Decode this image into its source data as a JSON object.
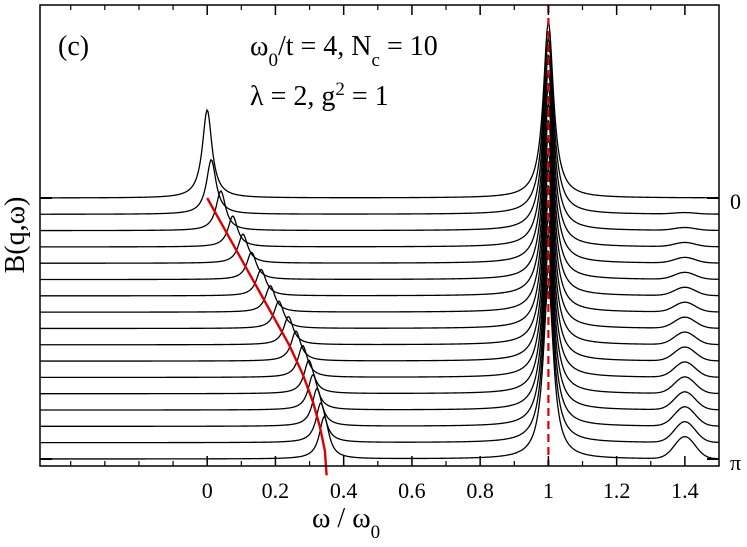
{
  "chart_data": {
    "type": "line",
    "panel_label": "(c)",
    "annotation_line1": {
      "main1": "ω",
      "sub1": "0",
      "main2": "/t = 4, N",
      "sub2": "c",
      "main3": " = 10"
    },
    "annotation_line2": {
      "main1": "λ = 2, g",
      "sup1": "2",
      "main2": " = 1"
    },
    "xlabel": {
      "main": "ω / ω",
      "sub": "0"
    },
    "ylabel": "B(q,ω)",
    "xlim": [
      -0.49,
      1.5
    ],
    "xticks": [
      0,
      0.2,
      0.4,
      0.6,
      0.8,
      1,
      1.2,
      1.4
    ],
    "xtick_labels": [
      "0",
      "0.2",
      "0.4",
      "0.6",
      "0.8",
      "1",
      "1.2",
      "1.4"
    ],
    "right_labels": {
      "top": "0",
      "bottom": "π"
    },
    "n_curves": 17,
    "series_description": "stacked spectra from q = 0 (top) to q = π (bottom)",
    "low_peak_positions": [
      0.0,
      0.012,
      0.04,
      0.075,
      0.105,
      0.13,
      0.158,
      0.185,
      0.21,
      0.238,
      0.26,
      0.28,
      0.298,
      0.31,
      0.322,
      0.333,
      0.343
    ],
    "low_peak_heights": [
      1.0,
      0.62,
      0.45,
      0.35,
      0.33,
      0.31,
      0.3,
      0.3,
      0.31,
      0.32,
      0.34,
      0.36,
      0.38,
      0.4,
      0.43,
      0.45,
      0.48
    ],
    "high_peak_position": 1.0,
    "high_peak_height": 2.0,
    "satellite_position": 1.4,
    "dispersion_curve": {
      "color": "#dd0000",
      "x": [
        0.0,
        0.04,
        0.08,
        0.12,
        0.16,
        0.2,
        0.24,
        0.28,
        0.31,
        0.33,
        0.345,
        0.35
      ],
      "curve_index": [
        0,
        1.5,
        3,
        4.5,
        6,
        7.5,
        9,
        10.8,
        12.5,
        14,
        15.5,
        17
      ]
    },
    "reference_line": {
      "x": 1.0,
      "color": "#dd0000",
      "style": "dashed"
    }
  }
}
